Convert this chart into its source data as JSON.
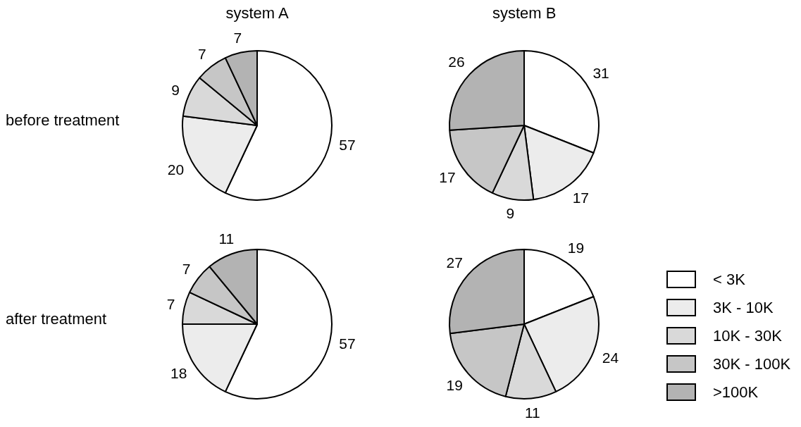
{
  "chart_data": [
    {
      "type": "pie",
      "title": "system A",
      "ylabel": "before treatment",
      "categories": [
        null,
        null,
        null,
        null,
        null
      ],
      "values": [
        57,
        20,
        9,
        7,
        7
      ],
      "colors": [
        "#ffffff",
        "#ececec",
        "#d9d9d9",
        "#c6c6c6",
        "#b3b3b3"
      ],
      "data_labels": true
    },
    {
      "type": "pie",
      "title": "system B",
      "categories": [
        null,
        null,
        null,
        null,
        null
      ],
      "values": [
        31,
        17,
        9,
        17,
        26
      ],
      "colors": [
        "#ffffff",
        "#ececec",
        "#d9d9d9",
        "#c6c6c6",
        "#b3b3b3"
      ],
      "data_labels": true
    },
    {
      "type": "pie",
      "ylabel": "after treatment",
      "categories": [
        null,
        null,
        null,
        null,
        null
      ],
      "values": [
        57,
        18,
        7,
        7,
        11
      ],
      "colors": [
        "#ffffff",
        "#ececec",
        "#d9d9d9",
        "#c6c6c6",
        "#b3b3b3"
      ],
      "data_labels": true
    },
    {
      "type": "pie",
      "categories": [
        "< 3K",
        "3K - 10K",
        "10K - 30K",
        "30K - 100K",
        ">100K"
      ],
      "values": [
        19,
        24,
        11,
        19,
        27
      ],
      "colors": [
        "#ffffff",
        "#ececec",
        "#d9d9d9",
        "#c6c6c6",
        "#b3b3b3"
      ],
      "data_labels": true,
      "legend": "right"
    }
  ]
}
